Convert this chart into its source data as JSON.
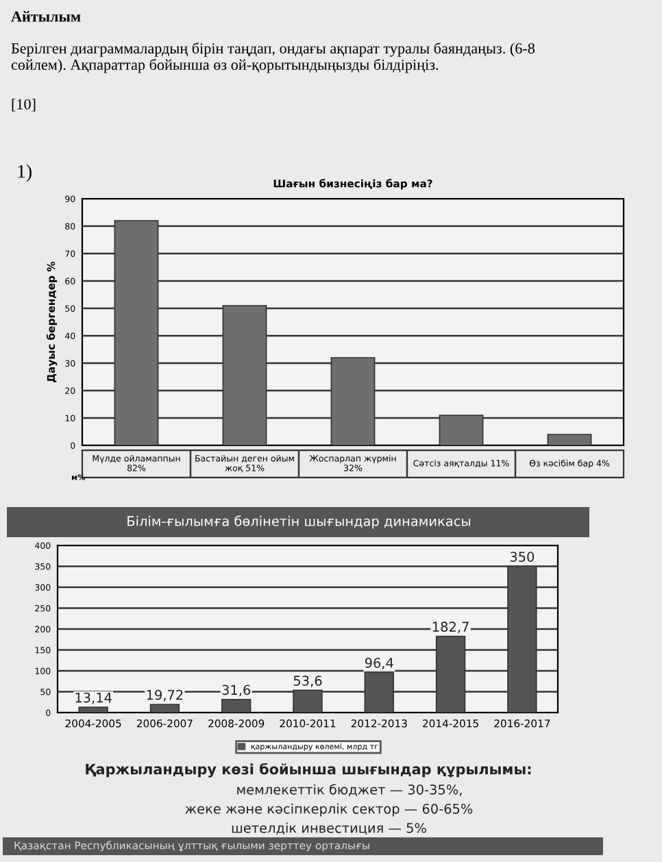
{
  "chart_data": [
    {
      "type": "bar",
      "title": "Шағын бизнесіңіз бар ма?",
      "ylabel": "Дауыс бергендер %",
      "categories": [
        "Мүлде ойламаппын 82%",
        "Бастайын деген ойым жоқ 51%",
        "Жоспарлап жүрмін 32%",
        "Сәтсіз аяқталды 11%",
        "Өз кәсібім бар 4%"
      ],
      "values": [
        82,
        51,
        32,
        11,
        4
      ],
      "color": "#6e6e6e",
      "ylim": [
        0,
        90
      ],
      "yticks": [
        0,
        10,
        20,
        30,
        40,
        50,
        60,
        70,
        80,
        90
      ],
      "grid": "y",
      "annotations": [
        "Айтылым",
        "Берілген диаграммалардың бірін таңдап, ондағы ақпарат туралы баяндаңыз. (6-8 сөйлем). Ақпараттар бойынша өз ой-қорытындыңызды білдіріңіз.",
        "[10]",
        "1)",
        "м%"
      ]
    },
    {
      "type": "bar",
      "title": "Білім-ғылымға бөлінетін шығындар динамикасы",
      "categories": [
        "2004-2005",
        "2006-2007",
        "2008-2009",
        "2010-2011",
        "2012-2013",
        "2014-2015",
        "2016-2017"
      ],
      "series": [
        {
          "name": "қаржыландыру көлемі, млрд тг",
          "color": "#555555",
          "values": [
            13.14,
            19.72,
            31.6,
            53.6,
            96.4,
            182.7,
            350
          ],
          "value_labels": [
            "13,14",
            "19,72",
            "31,6",
            "53,6",
            "96,4",
            "182,7",
            "350"
          ]
        }
      ],
      "ylim": [
        0,
        400
      ],
      "yticks": [
        0,
        50,
        100,
        150,
        200,
        250,
        300,
        350,
        400
      ],
      "grid": "y",
      "legend": "bottom",
      "annotations": [
        "Қаржыландыру көзі бойынша шығындар құрылымы:",
        "мемлекеттік бюджет — 30-35%,",
        "жеке және кәсіпкерлік сектор — 60-65%",
        "шетелдік инвестиция — 5%",
        "Қазақстан Республикасының ұлттық ғылыми зерттеу орталығы"
      ]
    }
  ]
}
